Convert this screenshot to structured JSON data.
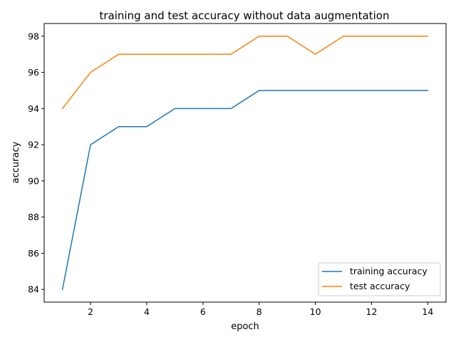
{
  "chart_data": {
    "type": "line",
    "title": "training and test accuracy without data augmentation",
    "xlabel": "epoch",
    "ylabel": "accuracy",
    "xlim": [
      0.35,
      14.65
    ],
    "ylim": [
      83.3,
      98.7
    ],
    "xticks": [
      2,
      4,
      6,
      8,
      10,
      12,
      14
    ],
    "yticks": [
      84,
      86,
      88,
      90,
      92,
      94,
      96,
      98
    ],
    "grid": false,
    "legend_position": "lower-right",
    "x": [
      1,
      2,
      3,
      4,
      5,
      6,
      7,
      8,
      9,
      10,
      11,
      12,
      13,
      14
    ],
    "series": [
      {
        "name": "training accuracy",
        "color": "#1f77b4",
        "values": [
          84,
          92,
          93,
          93,
          94,
          94,
          94,
          95,
          95,
          95,
          95,
          95,
          95,
          95
        ]
      },
      {
        "name": "test accuracy",
        "color": "#ff7f0e",
        "values": [
          94,
          96,
          97,
          97,
          97,
          97,
          97,
          98,
          98,
          97,
          98,
          98,
          98,
          98
        ]
      }
    ]
  }
}
